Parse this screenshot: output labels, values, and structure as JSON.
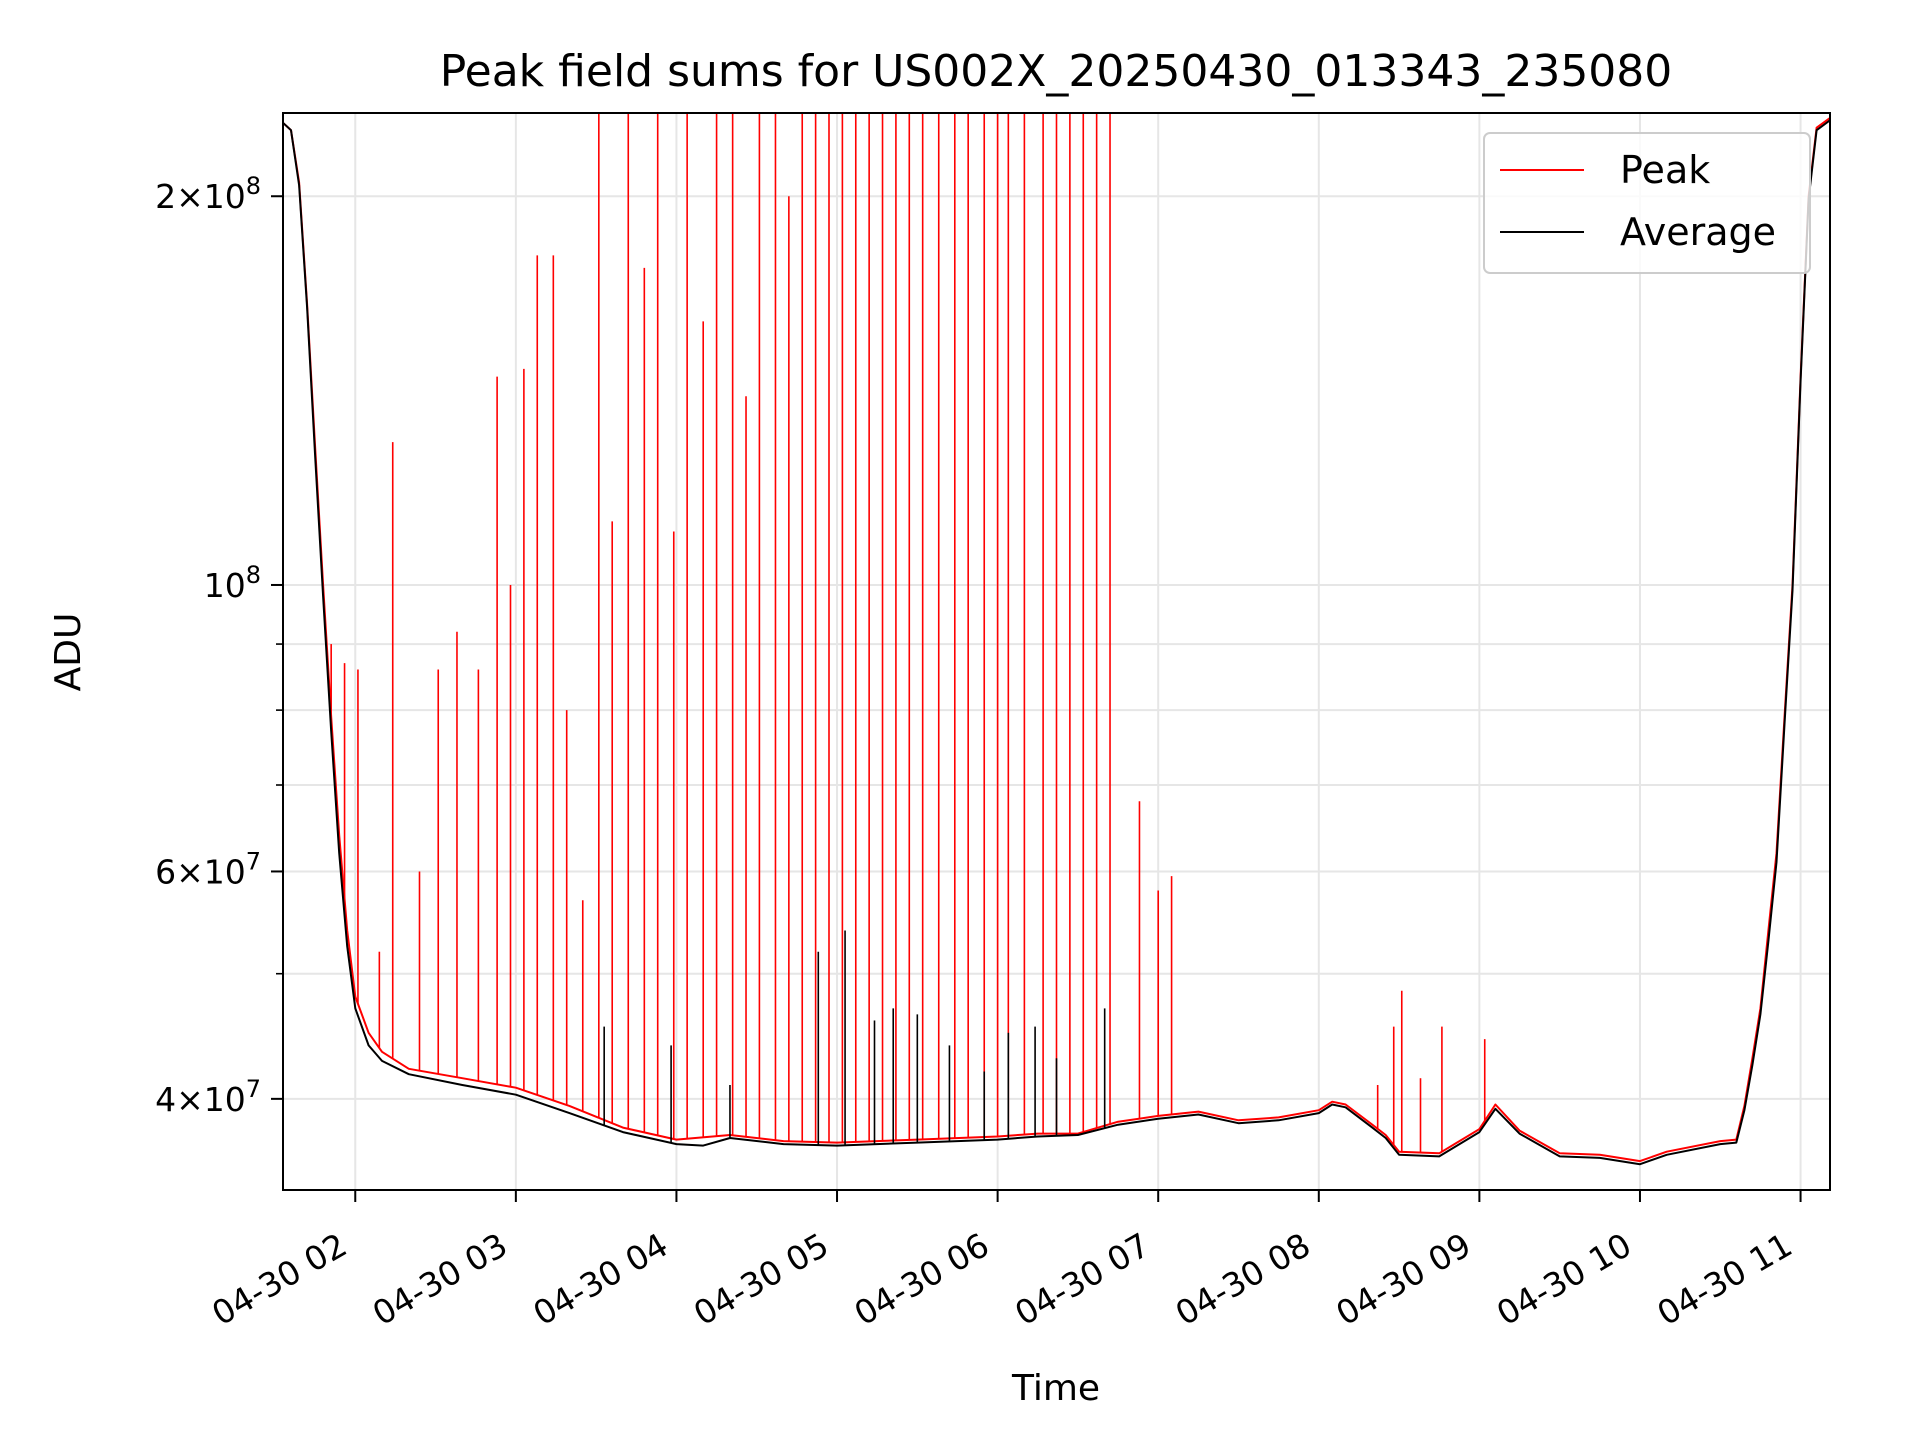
{
  "chart_data": {
    "type": "line",
    "title": "Peak field sums for US002X_20250430_013343_235080",
    "xlabel": "Time",
    "ylabel": "ADU",
    "yscale": "log",
    "ylim": [
      34000000,
      232000000
    ],
    "xlim": [
      "2025-04-30 01:33",
      "2025-04-30 11:11"
    ],
    "grid": true,
    "legend_position": "upper-right",
    "x_ticks": [
      "04-30 02",
      "04-30 03",
      "04-30 04",
      "04-30 05",
      "04-30 06",
      "04-30 07",
      "04-30 08",
      "04-30 09",
      "04-30 10",
      "04-30 11"
    ],
    "y_major_ticks": [
      {
        "value": 40000000,
        "mantissa": "4",
        "exponent": "7"
      },
      {
        "value": 60000000,
        "mantissa": "6",
        "exponent": "7"
      },
      {
        "value": 100000000,
        "mantissa": "",
        "exponent": "8"
      },
      {
        "value": 200000000,
        "mantissa": "2",
        "exponent": "8"
      }
    ],
    "y_minor_ticks": [
      50000000,
      70000000,
      80000000,
      90000000
    ],
    "tick_base": "10",
    "times_symbol": "×",
    "series": [
      {
        "name": "Peak",
        "color": "#ff0000",
        "points": [
          [
            "2025-04-30 01:33",
            228000000
          ],
          [
            "2025-04-30 01:36",
            225000000
          ],
          [
            "2025-04-30 01:39",
            205000000
          ],
          [
            "2025-04-30 01:42",
            165000000
          ],
          [
            "2025-04-30 01:45",
            128000000
          ],
          [
            "2025-04-30 01:48",
            100000000
          ],
          [
            "2025-04-30 01:51",
            79000000
          ],
          [
            "2025-04-30 01:54",
            64000000
          ],
          [
            "2025-04-30 01:57",
            54000000
          ],
          [
            "2025-04-30 02:00",
            48000000
          ],
          [
            "2025-04-30 02:05",
            45000000
          ],
          [
            "2025-04-30 02:10",
            43500000
          ],
          [
            "2025-04-30 02:20",
            42200000
          ],
          [
            "2025-04-30 02:40",
            41500000
          ],
          [
            "2025-04-30 03:00",
            40800000
          ],
          [
            "2025-04-30 03:20",
            39500000
          ],
          [
            "2025-04-30 03:40",
            38000000
          ],
          [
            "2025-04-30 04:00",
            37200000
          ],
          [
            "2025-04-30 04:20",
            37500000
          ],
          [
            "2025-04-30 04:40",
            37100000
          ],
          [
            "2025-04-30 05:00",
            37000000
          ],
          [
            "2025-04-30 05:30",
            37200000
          ],
          [
            "2025-04-30 06:00",
            37400000
          ],
          [
            "2025-04-30 06:15",
            37600000
          ],
          [
            "2025-04-30 06:30",
            37600000
          ],
          [
            "2025-04-30 06:45",
            38400000
          ],
          [
            "2025-04-30 07:00",
            38800000
          ],
          [
            "2025-04-30 07:15",
            39100000
          ],
          [
            "2025-04-30 07:30",
            38500000
          ],
          [
            "2025-04-30 07:45",
            38700000
          ],
          [
            "2025-04-30 08:00",
            39200000
          ],
          [
            "2025-04-30 08:05",
            39800000
          ],
          [
            "2025-04-30 08:10",
            39600000
          ],
          [
            "2025-04-30 08:20",
            38200000
          ],
          [
            "2025-04-30 08:25",
            37500000
          ],
          [
            "2025-04-30 08:30",
            36400000
          ],
          [
            "2025-04-30 08:45",
            36300000
          ],
          [
            "2025-04-30 09:00",
            37900000
          ],
          [
            "2025-04-30 09:06",
            39600000
          ],
          [
            "2025-04-30 09:15",
            37800000
          ],
          [
            "2025-04-30 09:30",
            36300000
          ],
          [
            "2025-04-30 09:45",
            36200000
          ],
          [
            "2025-04-30 10:00",
            35800000
          ],
          [
            "2025-04-30 10:10",
            36400000
          ],
          [
            "2025-04-30 10:30",
            37100000
          ],
          [
            "2025-04-30 10:36",
            37200000
          ],
          [
            "2025-04-30 10:39",
            39500000
          ],
          [
            "2025-04-30 10:42",
            43000000
          ],
          [
            "2025-04-30 10:45",
            47000000
          ],
          [
            "2025-04-30 10:48",
            54000000
          ],
          [
            "2025-04-30 10:51",
            62000000
          ],
          [
            "2025-04-30 10:54",
            79000000
          ],
          [
            "2025-04-30 10:57",
            100000000
          ],
          [
            "2025-04-30 11:00",
            145000000
          ],
          [
            "2025-04-30 11:03",
            200000000
          ],
          [
            "2025-04-30 11:06",
            226000000
          ],
          [
            "2025-04-30 11:11",
            230000000
          ]
        ],
        "spikes": [
          [
            "2025-04-30 01:51",
            90000000
          ],
          [
            "2025-04-30 01:56",
            87000000
          ],
          [
            "2025-04-30 02:01",
            86000000
          ],
          [
            "2025-04-30 02:09",
            52000000
          ],
          [
            "2025-04-30 02:14",
            129000000
          ],
          [
            "2025-04-30 02:24",
            60000000
          ],
          [
            "2025-04-30 02:31",
            86000000
          ],
          [
            "2025-04-30 02:38",
            92000000
          ],
          [
            "2025-04-30 02:46",
            86000000
          ],
          [
            "2025-04-30 02:53",
            145000000
          ],
          [
            "2025-04-30 02:58",
            100000000
          ],
          [
            "2025-04-30 03:03",
            147000000
          ],
          [
            "2025-04-30 03:08",
            180000000
          ],
          [
            "2025-04-30 03:14",
            180000000
          ],
          [
            "2025-04-30 03:19",
            80000000
          ],
          [
            "2025-04-30 03:25",
            57000000
          ],
          [
            "2025-04-30 03:31",
            235000000
          ],
          [
            "2025-04-30 03:36",
            112000000
          ],
          [
            "2025-04-30 03:42",
            235000000
          ],
          [
            "2025-04-30 03:48",
            176000000
          ],
          [
            "2025-04-30 03:53",
            235000000
          ],
          [
            "2025-04-30 03:59",
            110000000
          ],
          [
            "2025-04-30 04:04",
            235000000
          ],
          [
            "2025-04-30 04:10",
            160000000
          ],
          [
            "2025-04-30 04:15",
            235000000
          ],
          [
            "2025-04-30 04:21",
            235000000
          ],
          [
            "2025-04-30 04:26",
            140000000
          ],
          [
            "2025-04-30 04:31",
            235000000
          ],
          [
            "2025-04-30 04:37",
            235000000
          ],
          [
            "2025-04-30 04:42",
            200000000
          ],
          [
            "2025-04-30 04:47",
            235000000
          ],
          [
            "2025-04-30 04:52",
            235000000
          ],
          [
            "2025-04-30 04:57",
            235000000
          ],
          [
            "2025-04-30 05:02",
            235000000
          ],
          [
            "2025-04-30 05:07",
            235000000
          ],
          [
            "2025-04-30 05:12",
            235000000
          ],
          [
            "2025-04-30 05:17",
            235000000
          ],
          [
            "2025-04-30 05:22",
            235000000
          ],
          [
            "2025-04-30 05:27",
            235000000
          ],
          [
            "2025-04-30 05:32",
            235000000
          ],
          [
            "2025-04-30 05:38",
            235000000
          ],
          [
            "2025-04-30 05:44",
            235000000
          ],
          [
            "2025-04-30 05:49",
            235000000
          ],
          [
            "2025-04-30 05:55",
            235000000
          ],
          [
            "2025-04-30 06:00",
            235000000
          ],
          [
            "2025-04-30 06:04",
            235000000
          ],
          [
            "2025-04-30 06:10",
            235000000
          ],
          [
            "2025-04-30 06:17",
            235000000
          ],
          [
            "2025-04-30 06:22",
            235000000
          ],
          [
            "2025-04-30 06:27",
            235000000
          ],
          [
            "2025-04-30 06:32",
            235000000
          ],
          [
            "2025-04-30 06:37",
            235000000
          ],
          [
            "2025-04-30 06:42",
            235000000
          ],
          [
            "2025-04-30 06:53",
            68000000
          ],
          [
            "2025-04-30 07:00",
            58000000
          ],
          [
            "2025-04-30 07:05",
            59500000
          ],
          [
            "2025-04-30 08:22",
            41000000
          ],
          [
            "2025-04-30 08:28",
            45500000
          ],
          [
            "2025-04-30 08:31",
            48500000
          ],
          [
            "2025-04-30 08:38",
            41500000
          ],
          [
            "2025-04-30 08:46",
            45500000
          ],
          [
            "2025-04-30 09:02",
            44500000
          ]
        ]
      },
      {
        "name": "Average",
        "color": "#000000",
        "points": [
          [
            "2025-04-30 01:33",
            228000000
          ],
          [
            "2025-04-30 01:36",
            225000000
          ],
          [
            "2025-04-30 01:39",
            204000000
          ],
          [
            "2025-04-30 01:42",
            164000000
          ],
          [
            "2025-04-30 01:45",
            126000000
          ],
          [
            "2025-04-30 01:48",
            98000000
          ],
          [
            "2025-04-30 01:51",
            77000000
          ],
          [
            "2025-04-30 01:54",
            62000000
          ],
          [
            "2025-04-30 01:57",
            52500000
          ],
          [
            "2025-04-30 02:00",
            47000000
          ],
          [
            "2025-04-30 02:05",
            44000000
          ],
          [
            "2025-04-30 02:10",
            42800000
          ],
          [
            "2025-04-30 02:20",
            41800000
          ],
          [
            "2025-04-30 02:40",
            41000000
          ],
          [
            "2025-04-30 03:00",
            40300000
          ],
          [
            "2025-04-30 03:20",
            39000000
          ],
          [
            "2025-04-30 03:40",
            37700000
          ],
          [
            "2025-04-30 04:00",
            36900000
          ],
          [
            "2025-04-30 04:10",
            36800000
          ],
          [
            "2025-04-30 04:20",
            37300000
          ],
          [
            "2025-04-30 04:40",
            36900000
          ],
          [
            "2025-04-30 05:00",
            36800000
          ],
          [
            "2025-04-30 05:30",
            37000000
          ],
          [
            "2025-04-30 06:00",
            37200000
          ],
          [
            "2025-04-30 06:15",
            37400000
          ],
          [
            "2025-04-30 06:30",
            37500000
          ],
          [
            "2025-04-30 06:45",
            38200000
          ],
          [
            "2025-04-30 07:00",
            38600000
          ],
          [
            "2025-04-30 07:15",
            38900000
          ],
          [
            "2025-04-30 07:30",
            38300000
          ],
          [
            "2025-04-30 07:45",
            38500000
          ],
          [
            "2025-04-30 08:00",
            39000000
          ],
          [
            "2025-04-30 08:05",
            39600000
          ],
          [
            "2025-04-30 08:10",
            39400000
          ],
          [
            "2025-04-30 08:20",
            38000000
          ],
          [
            "2025-04-30 08:25",
            37300000
          ],
          [
            "2025-04-30 08:30",
            36200000
          ],
          [
            "2025-04-30 08:45",
            36100000
          ],
          [
            "2025-04-30 09:00",
            37700000
          ],
          [
            "2025-04-30 09:06",
            39300000
          ],
          [
            "2025-04-30 09:15",
            37600000
          ],
          [
            "2025-04-30 09:30",
            36100000
          ],
          [
            "2025-04-30 09:45",
            36000000
          ],
          [
            "2025-04-30 10:00",
            35600000
          ],
          [
            "2025-04-30 10:10",
            36200000
          ],
          [
            "2025-04-30 10:30",
            36900000
          ],
          [
            "2025-04-30 10:36",
            37000000
          ],
          [
            "2025-04-30 10:39",
            39200000
          ],
          [
            "2025-04-30 10:42",
            42500000
          ],
          [
            "2025-04-30 10:45",
            46500000
          ],
          [
            "2025-04-30 10:48",
            53000000
          ],
          [
            "2025-04-30 10:51",
            61000000
          ],
          [
            "2025-04-30 10:54",
            78000000
          ],
          [
            "2025-04-30 10:57",
            99000000
          ],
          [
            "2025-04-30 11:00",
            144000000
          ],
          [
            "2025-04-30 11:03",
            199000000
          ],
          [
            "2025-04-30 11:06",
            225000000
          ],
          [
            "2025-04-30 11:11",
            229000000
          ]
        ],
        "spikes": [
          [
            "2025-04-30 03:33",
            45500000
          ],
          [
            "2025-04-30 03:58",
            44000000
          ],
          [
            "2025-04-30 04:20",
            41000000
          ],
          [
            "2025-04-30 04:53",
            52000000
          ],
          [
            "2025-04-30 05:03",
            54000000
          ],
          [
            "2025-04-30 05:14",
            46000000
          ],
          [
            "2025-04-30 05:21",
            47000000
          ],
          [
            "2025-04-30 05:30",
            46500000
          ],
          [
            "2025-04-30 05:42",
            44000000
          ],
          [
            "2025-04-30 05:55",
            42000000
          ],
          [
            "2025-04-30 06:04",
            45000000
          ],
          [
            "2025-04-30 06:14",
            45500000
          ],
          [
            "2025-04-30 06:22",
            43000000
          ],
          [
            "2025-04-30 06:40",
            47000000
          ]
        ]
      }
    ]
  }
}
